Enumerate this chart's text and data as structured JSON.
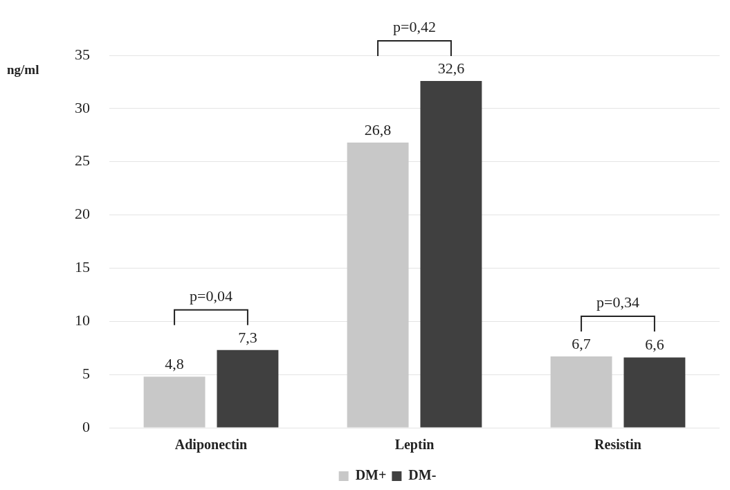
{
  "chart_data": {
    "type": "bar",
    "ylabel": "ng/ml",
    "categories": [
      "Adiponectin",
      "Leptin",
      "Resistin"
    ],
    "series": [
      {
        "name": "DM+",
        "color": "#c8c8c8",
        "values": [
          4.8,
          26.8,
          6.7
        ],
        "value_labels": [
          "4,8",
          "26,8",
          "6,7"
        ]
      },
      {
        "name": "DM-",
        "color": "#404040",
        "values": [
          7.3,
          32.6,
          6.6
        ],
        "value_labels": [
          "7,3",
          "32,6",
          "6,6"
        ]
      }
    ],
    "ylim": [
      0,
      35
    ],
    "yticks": [
      0,
      5,
      10,
      15,
      20,
      25,
      30,
      35
    ],
    "grid": "y",
    "legend": "bottom",
    "annotations": [
      "p=0,04",
      "p=0,42",
      "p=0,34"
    ]
  }
}
